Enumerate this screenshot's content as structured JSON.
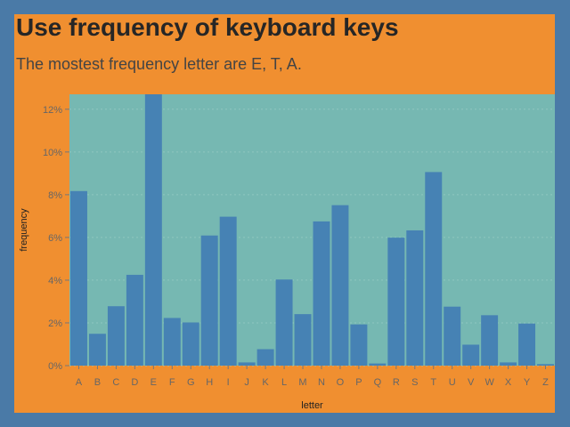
{
  "title": "Use frequency of keyboard keys",
  "subtitle": "The mostest frequency letter are E, T, A.",
  "colors": {
    "background": "#4a7aa7",
    "panel": "#f08f30",
    "plot": "#76b8b2",
    "bar": "#4682b4"
  },
  "chart_data": {
    "type": "bar",
    "title": "Use frequency of keyboard keys",
    "subtitle": "The mostest frequency letter are E, T, A.",
    "xlabel": "letter",
    "ylabel": "frequency",
    "categories": [
      "A",
      "B",
      "C",
      "D",
      "E",
      "F",
      "G",
      "H",
      "I",
      "J",
      "K",
      "L",
      "M",
      "N",
      "O",
      "P",
      "Q",
      "R",
      "S",
      "T",
      "U",
      "V",
      "W",
      "X",
      "Y",
      "Z"
    ],
    "values": [
      8.17,
      1.49,
      2.78,
      4.25,
      12.7,
      2.23,
      2.02,
      6.09,
      6.97,
      0.15,
      0.77,
      4.03,
      2.41,
      6.75,
      7.51,
      1.93,
      0.1,
      5.99,
      6.33,
      9.06,
      2.76,
      0.98,
      2.36,
      0.15,
      1.97,
      0.07
    ],
    "ylim": [
      0,
      12.7
    ],
    "yticks": [
      0,
      2,
      4,
      6,
      8,
      10,
      12
    ],
    "ytick_labels": [
      "0%",
      "2%",
      "4%",
      "6%",
      "8%",
      "10%",
      "12%"
    ],
    "grid": true,
    "legend": false
  }
}
